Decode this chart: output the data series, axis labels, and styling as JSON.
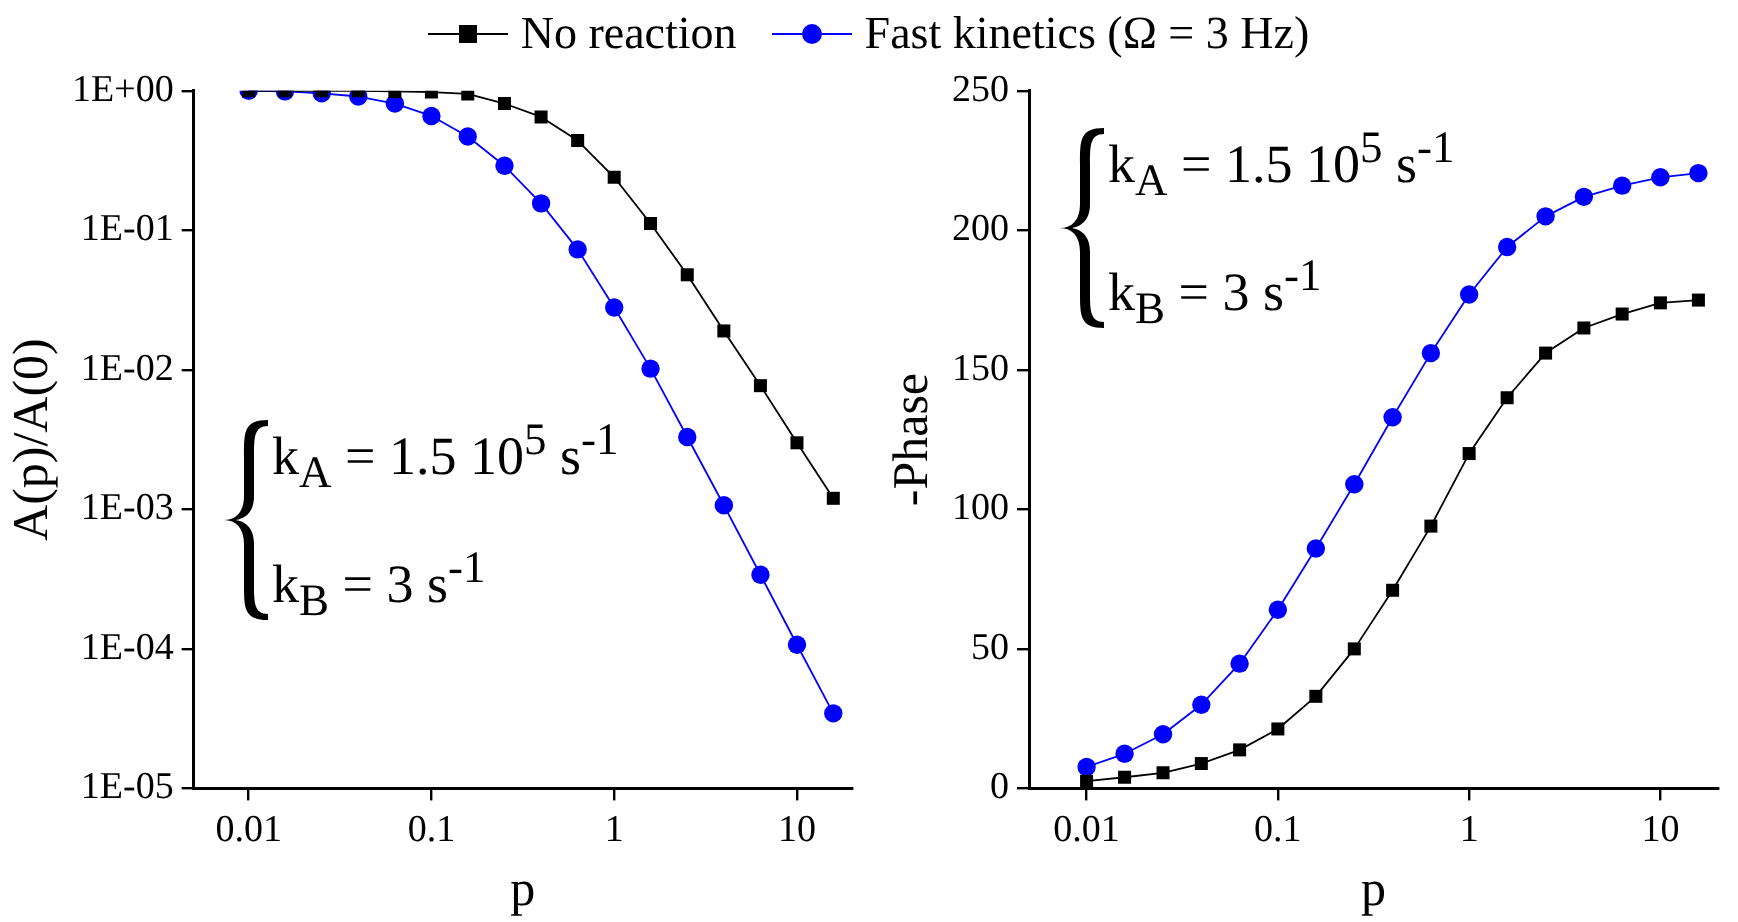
{
  "chart_data": [
    {
      "type": "line",
      "xlabel": "p",
      "ylabel": "A(p)/A(0)",
      "log": "xy",
      "legend": "top",
      "grid": false,
      "line_style": "solid",
      "x": [
        0.01,
        0.0158,
        0.0251,
        0.0398,
        0.0631,
        0.1,
        0.158,
        0.251,
        0.398,
        0.631,
        1,
        1.58,
        2.51,
        3.98,
        6.31,
        10,
        15.8
      ],
      "xlim": [
        0.005,
        20
      ],
      "xticks": [
        0.01,
        0.1,
        1,
        10
      ],
      "ylim": [
        1e-05,
        1
      ],
      "yticks": [
        {
          "value": 1,
          "label": "1E+00"
        },
        {
          "value": 0.1,
          "label": "1E-01"
        },
        {
          "value": 0.01,
          "label": "1E-02"
        },
        {
          "value": 0.001,
          "label": "1E-03"
        },
        {
          "value": 0.0001,
          "label": "1E-04"
        },
        {
          "value": 1e-05,
          "label": "1E-05"
        }
      ],
      "series": [
        {
          "name": "No reaction",
          "color": "#000000",
          "marker": "square",
          "values": [
            1,
            1,
            1,
            1,
            0.99,
            0.98,
            0.95,
            0.81,
            0.65,
            0.44,
            0.24,
            0.112,
            0.048,
            0.019,
            0.0077,
            0.003,
            0.0012
          ]
        },
        {
          "name": "Fast kinetics (Ω = 3 Hz)",
          "color": "#0000ff",
          "marker": "circle",
          "values": [
            1,
            0.99,
            0.96,
            0.91,
            0.81,
            0.66,
            0.47,
            0.29,
            0.156,
            0.073,
            0.028,
            0.0102,
            0.0033,
            0.00107,
            0.00034,
            0.000107,
            3.45e-05
          ]
        }
      ],
      "annotations": [
        "k$_{A}$ = 1.5 10$^{5}$ s$^{-1}$",
        "k$_{B}$ = 3 s$^{-1}$"
      ]
    },
    {
      "type": "line",
      "xlabel": "p",
      "ylabel": "-Phase",
      "log": "x",
      "grid": false,
      "line_style": "solid",
      "x": [
        0.01,
        0.0158,
        0.0251,
        0.0398,
        0.0631,
        0.1,
        0.158,
        0.251,
        0.398,
        0.631,
        1,
        1.58,
        2.51,
        3.98,
        6.31,
        10,
        15.8
      ],
      "xlim": [
        0.005,
        20
      ],
      "xticks": [
        0.01,
        0.1,
        1,
        10
      ],
      "ylim": [
        0,
        250
      ],
      "yticks": [
        0,
        50,
        100,
        150,
        200,
        250
      ],
      "series": [
        {
          "color": "#000000",
          "marker": "square",
          "values": [
            2.6,
            4,
            5.6,
            8.9,
            13.8,
            21.3,
            33,
            50,
            71,
            94,
            120,
            140,
            156,
            165,
            170,
            174,
            175
          ]
        },
        {
          "color": "#0000ff",
          "marker": "circle",
          "values": [
            7.7,
            12.4,
            19.4,
            30,
            44.7,
            64,
            86,
            109,
            133,
            156,
            177,
            194,
            205,
            212,
            216,
            219,
            220.5
          ]
        }
      ],
      "annotations": [
        "k$_{A}$ = 1.5 10$^{5}$ s$^{-1}$",
        "k$_{B}$ = 3 s$^{-1}$"
      ]
    }
  ]
}
